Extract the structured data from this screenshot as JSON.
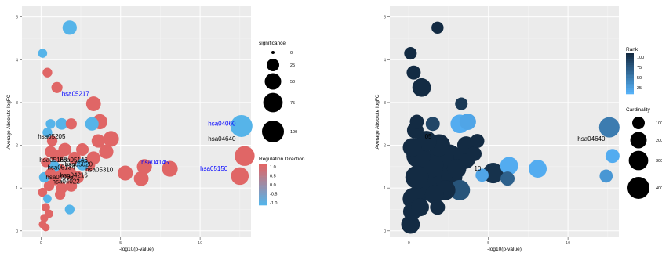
{
  "chart_data": [
    {
      "type": "scatter",
      "xlabel": "-log10(p-value)",
      "ylabel": "Average Absolute logFC",
      "xlim": [
        -1.2,
        13.2
      ],
      "ylim": [
        -0.15,
        5.25
      ],
      "xticks": [
        0,
        5,
        10
      ],
      "yticks": [
        0,
        1,
        2,
        3,
        4,
        5
      ],
      "grid": true,
      "legend_position": "right",
      "colors": {
        "up": "#e06666",
        "down": "#56b4e9",
        "panel": "#ebebeb"
      },
      "legends": {
        "size_title": "significance",
        "size_values": [
          "0",
          "25",
          "50",
          "75",
          "100"
        ],
        "color_title": "Regulation Direction",
        "color_values": [
          "1.0",
          "0.5",
          "0.0",
          "-0.5",
          "-1.0"
        ]
      },
      "labels": [
        {
          "text": "hsa05217",
          "x": 1.3,
          "y": 3.2,
          "color": "#0000ff"
        },
        {
          "text": "hsa04060",
          "x": 10.5,
          "y": 2.5,
          "color": "#0000ff"
        },
        {
          "text": "hsa04640",
          "x": 10.5,
          "y": 2.15,
          "color": "#000000"
        },
        {
          "text": "hsa05205",
          "x": -0.2,
          "y": 2.2,
          "color": "#000000"
        },
        {
          "text": "hsa04145",
          "x": 6.3,
          "y": 1.6,
          "color": "#0000ff"
        },
        {
          "text": "hsa05150",
          "x": 10.0,
          "y": 1.45,
          "color": "#0000ff"
        },
        {
          "text": "hsa05168",
          "x": -0.1,
          "y": 1.65,
          "color": "#000000"
        },
        {
          "text": "hsa05146",
          "x": 1.2,
          "y": 1.65,
          "color": "#000000"
        },
        {
          "text": "hsa05020",
          "x": 1.5,
          "y": 1.55,
          "color": "#000000"
        },
        {
          "text": "hsa05134",
          "x": 0.4,
          "y": 1.48,
          "color": "#000000"
        },
        {
          "text": "hsa05310",
          "x": 2.8,
          "y": 1.42,
          "color": "#000000"
        },
        {
          "text": "hsa04216",
          "x": 1.2,
          "y": 1.3,
          "color": "#000000"
        },
        {
          "text": "hsa04066",
          "x": 0.3,
          "y": 1.25,
          "color": "#000000"
        },
        {
          "text": "hsa04022",
          "x": 0.7,
          "y": 1.15,
          "color": "#000000"
        }
      ],
      "points": [
        {
          "x": 1.8,
          "y": 4.75,
          "size": 35,
          "dir": -1
        },
        {
          "x": 0.1,
          "y": 4.15,
          "size": 10,
          "dir": -1
        },
        {
          "x": 0.4,
          "y": 3.7,
          "size": 12,
          "dir": 1
        },
        {
          "x": 1.0,
          "y": 3.35,
          "size": 18,
          "dir": 1
        },
        {
          "x": 3.3,
          "y": 2.97,
          "size": 38,
          "dir": 1
        },
        {
          "x": 12.6,
          "y": 2.45,
          "size": 100,
          "dir": -1
        },
        {
          "x": 3.2,
          "y": 2.5,
          "size": 30,
          "dir": -1
        },
        {
          "x": 3.7,
          "y": 2.55,
          "size": 40,
          "dir": 1
        },
        {
          "x": 1.3,
          "y": 2.5,
          "size": 20,
          "dir": -1
        },
        {
          "x": 1.9,
          "y": 2.5,
          "size": 18,
          "dir": 1
        },
        {
          "x": 0.6,
          "y": 2.5,
          "size": 12,
          "dir": -1
        },
        {
          "x": 0.4,
          "y": 2.3,
          "size": 12,
          "dir": -1
        },
        {
          "x": 12.8,
          "y": 1.75,
          "size": 80,
          "dir": 1
        },
        {
          "x": 12.5,
          "y": 1.28,
          "size": 60,
          "dir": 1
        },
        {
          "x": 8.1,
          "y": 1.45,
          "size": 45,
          "dir": 1
        },
        {
          "x": 6.5,
          "y": 1.5,
          "size": 40,
          "dir": 1
        },
        {
          "x": 6.3,
          "y": 1.22,
          "size": 38,
          "dir": 1
        },
        {
          "x": 5.3,
          "y": 1.35,
          "size": 40,
          "dir": 1
        },
        {
          "x": 4.4,
          "y": 2.15,
          "size": 45,
          "dir": 1
        },
        {
          "x": 3.6,
          "y": 2.1,
          "size": 30,
          "dir": 1
        },
        {
          "x": 4.1,
          "y": 1.85,
          "size": 35,
          "dir": 1
        },
        {
          "x": 3.3,
          "y": 1.7,
          "size": 30,
          "dir": 1
        },
        {
          "x": 3.0,
          "y": 1.55,
          "size": 28,
          "dir": 1
        },
        {
          "x": 2.6,
          "y": 1.9,
          "size": 25,
          "dir": 1
        },
        {
          "x": 2.1,
          "y": 1.7,
          "size": 25,
          "dir": 1
        },
        {
          "x": 1.5,
          "y": 1.9,
          "size": 28,
          "dir": 1
        },
        {
          "x": 1.0,
          "y": 1.75,
          "size": 28,
          "dir": 1
        },
        {
          "x": 0.6,
          "y": 1.85,
          "size": 20,
          "dir": 1
        },
        {
          "x": 1.2,
          "y": 1.4,
          "size": 30,
          "dir": 1
        },
        {
          "x": 0.8,
          "y": 1.5,
          "size": 22,
          "dir": -1
        },
        {
          "x": 1.8,
          "y": 1.35,
          "size": 28,
          "dir": 1
        },
        {
          "x": 2.3,
          "y": 1.25,
          "size": 25,
          "dir": 1
        },
        {
          "x": 1.9,
          "y": 1.05,
          "size": 20,
          "dir": 1
        },
        {
          "x": 1.3,
          "y": 1.0,
          "size": 18,
          "dir": 1
        },
        {
          "x": 0.9,
          "y": 1.2,
          "size": 20,
          "dir": 1
        },
        {
          "x": 0.5,
          "y": 1.05,
          "size": 15,
          "dir": 1
        },
        {
          "x": 0.2,
          "y": 1.25,
          "size": 15,
          "dir": -1
        },
        {
          "x": 0.1,
          "y": 0.9,
          "size": 10,
          "dir": 1
        },
        {
          "x": 0.4,
          "y": 0.75,
          "size": 8,
          "dir": -1
        },
        {
          "x": 0.3,
          "y": 0.55,
          "size": 8,
          "dir": 1
        },
        {
          "x": 0.5,
          "y": 0.4,
          "size": 8,
          "dir": 1
        },
        {
          "x": 0.2,
          "y": 0.3,
          "size": 7,
          "dir": 1
        },
        {
          "x": 0.1,
          "y": 0.15,
          "size": 6,
          "dir": 1
        },
        {
          "x": 0.3,
          "y": 0.08,
          "size": 6,
          "dir": 1
        },
        {
          "x": 1.8,
          "y": 0.5,
          "size": 12,
          "dir": -1
        },
        {
          "x": 1.2,
          "y": 0.85,
          "size": 15,
          "dir": 1
        },
        {
          "x": 2.6,
          "y": 1.55,
          "size": 22,
          "dir": -1
        },
        {
          "x": 0.7,
          "y": 2.1,
          "size": 15,
          "dir": 1
        },
        {
          "x": 0.3,
          "y": 1.6,
          "size": 12,
          "dir": 1
        },
        {
          "x": 0.6,
          "y": 1.35,
          "size": 14,
          "dir": 1
        }
      ]
    },
    {
      "type": "scatter",
      "xlabel": "-log10(p-value)",
      "ylabel": "Average Absolute logFC",
      "xlim": [
        -1.2,
        13.2
      ],
      "ylim": [
        -0.15,
        5.25
      ],
      "xticks": [
        0,
        5,
        10
      ],
      "yticks": [
        0,
        1,
        2,
        3,
        4,
        5
      ],
      "grid": true,
      "legend_position": "right",
      "colors": {
        "low": "#56b1f7",
        "high": "#132b43",
        "panel": "#ebebeb"
      },
      "legends": {
        "color_title": "Rank",
        "color_values": [
          "100",
          "75",
          "50",
          "25"
        ],
        "size_title": "Cardinality",
        "size_values": [
          "100",
          "200",
          "300",
          "400"
        ]
      },
      "labels": [
        {
          "text": "hsa04640",
          "x": 10.6,
          "y": 2.15,
          "color": "#000000"
        },
        {
          "text": "05",
          "x": 1.0,
          "y": 2.2,
          "color": "#000000"
        },
        {
          "text": "10",
          "x": 4.1,
          "y": 1.45,
          "color": "#000000"
        }
      ],
      "points": [
        {
          "x": 1.8,
          "y": 4.75,
          "size": 40,
          "rank": 100
        },
        {
          "x": 0.1,
          "y": 4.15,
          "size": 45,
          "rank": 100
        },
        {
          "x": 0.3,
          "y": 3.7,
          "size": 60,
          "rank": 100
        },
        {
          "x": 0.8,
          "y": 3.35,
          "size": 120,
          "rank": 100
        },
        {
          "x": 3.3,
          "y": 2.97,
          "size": 45,
          "rank": 90
        },
        {
          "x": 3.2,
          "y": 2.5,
          "size": 120,
          "rank": 5
        },
        {
          "x": 3.7,
          "y": 2.55,
          "size": 90,
          "rank": 10
        },
        {
          "x": 12.6,
          "y": 2.42,
          "size": 150,
          "rank": 40
        },
        {
          "x": 12.8,
          "y": 1.75,
          "size": 60,
          "rank": 5
        },
        {
          "x": 12.4,
          "y": 1.28,
          "size": 50,
          "rank": 20
        },
        {
          "x": 8.1,
          "y": 1.45,
          "size": 110,
          "rank": 5
        },
        {
          "x": 6.3,
          "y": 1.52,
          "size": 110,
          "rank": 5
        },
        {
          "x": 6.2,
          "y": 1.22,
          "size": 60,
          "rank": 60
        },
        {
          "x": 5.3,
          "y": 1.35,
          "size": 150,
          "rank": 95
        },
        {
          "x": 4.6,
          "y": 1.3,
          "size": 50,
          "rank": 10
        },
        {
          "x": 4.3,
          "y": 2.1,
          "size": 60,
          "rank": 100
        },
        {
          "x": 4.1,
          "y": 1.8,
          "size": 70,
          "rank": 100
        },
        {
          "x": 3.6,
          "y": 2.0,
          "size": 110,
          "rank": 100
        },
        {
          "x": 3.5,
          "y": 1.7,
          "size": 180,
          "rank": 100
        },
        {
          "x": 3.2,
          "y": 0.95,
          "size": 150,
          "rank": 70
        },
        {
          "x": 3.0,
          "y": 1.45,
          "size": 130,
          "rank": 100
        },
        {
          "x": 2.5,
          "y": 1.7,
          "size": 300,
          "rank": 100
        },
        {
          "x": 1.9,
          "y": 2.0,
          "size": 180,
          "rank": 100
        },
        {
          "x": 1.9,
          "y": 1.25,
          "size": 350,
          "rank": 100
        },
        {
          "x": 1.3,
          "y": 1.55,
          "size": 300,
          "rank": 100
        },
        {
          "x": 1.1,
          "y": 2.1,
          "size": 150,
          "rank": 100
        },
        {
          "x": 1.0,
          "y": 1.0,
          "size": 250,
          "rank": 100
        },
        {
          "x": 0.6,
          "y": 1.75,
          "size": 220,
          "rank": 100
        },
        {
          "x": 0.5,
          "y": 1.25,
          "size": 200,
          "rank": 100
        },
        {
          "x": 0.4,
          "y": 2.35,
          "size": 90,
          "rank": 100
        },
        {
          "x": 0.3,
          "y": 0.75,
          "size": 180,
          "rank": 100
        },
        {
          "x": 0.2,
          "y": 0.45,
          "size": 110,
          "rank": 100
        },
        {
          "x": 0.1,
          "y": 0.15,
          "size": 120,
          "rank": 100
        },
        {
          "x": 0.2,
          "y": 1.95,
          "size": 120,
          "rank": 100
        },
        {
          "x": 0.5,
          "y": 2.55,
          "size": 60,
          "rank": 100
        },
        {
          "x": 1.5,
          "y": 2.5,
          "size": 60,
          "rank": 80
        },
        {
          "x": 1.8,
          "y": 0.55,
          "size": 70,
          "rank": 100
        },
        {
          "x": 2.3,
          "y": 0.95,
          "size": 140,
          "rank": 100
        },
        {
          "x": 2.7,
          "y": 1.25,
          "size": 160,
          "rank": 100
        },
        {
          "x": 1.6,
          "y": 0.85,
          "size": 120,
          "rank": 100
        },
        {
          "x": 0.7,
          "y": 0.55,
          "size": 110,
          "rank": 100
        }
      ]
    }
  ]
}
